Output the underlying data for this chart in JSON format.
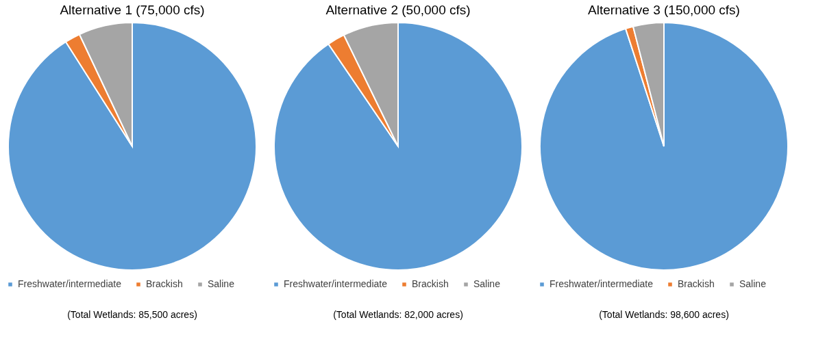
{
  "chart_data": [
    {
      "type": "pie",
      "title": "Alternative 1  (75,000 cfs)",
      "categories": [
        "Freshwater/intermediate",
        "Brackish",
        "Saline"
      ],
      "values": [
        91,
        2,
        7
      ],
      "colors": [
        "#5b9bd5",
        "#ed7d31",
        "#a5a5a5"
      ],
      "legend": "bottom",
      "annotations": [
        "(Total Wetlands: 85,500 acres)"
      ]
    },
    {
      "type": "pie",
      "title": "Alternative 2 (50,000 cfs)",
      "categories": [
        "Freshwater/intermediate",
        "Brackish",
        "Saline"
      ],
      "values": [
        90.5,
        2.3,
        7.2
      ],
      "colors": [
        "#5b9bd5",
        "#ed7d31",
        "#a5a5a5"
      ],
      "legend": "bottom",
      "annotations": [
        "(Total Wetlands: 82,000 acres)"
      ]
    },
    {
      "type": "pie",
      "title": "Alternative 3 (150,000 cfs)",
      "categories": [
        "Freshwater/intermediate",
        "Brackish",
        "Saline"
      ],
      "values": [
        95,
        1,
        4
      ],
      "colors": [
        "#5b9bd5",
        "#ed7d31",
        "#a5a5a5"
      ],
      "legend": "bottom",
      "annotations": [
        "(Total Wetlands: 98,600 acres)"
      ]
    }
  ]
}
